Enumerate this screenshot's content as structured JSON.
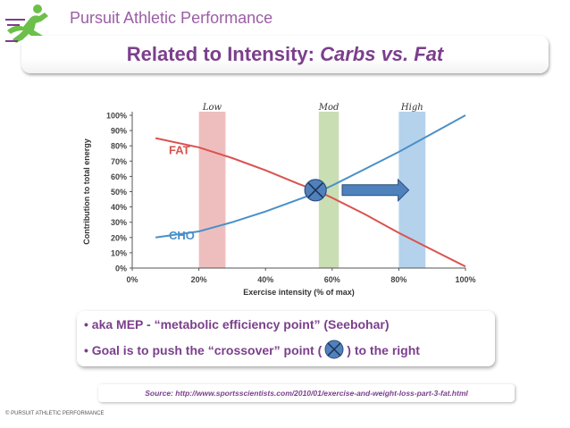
{
  "header": {
    "brand": "Pursuit Athletic Performance",
    "logo_icon": "running-man-icon"
  },
  "slide": {
    "title_main": "Related to Intensity: ",
    "title_emphasis": "Carbs vs. Fat"
  },
  "chart_data": {
    "type": "line",
    "title": "",
    "xlabel": "Exercise intensity (% of max)",
    "ylabel": "Contribution to total energy",
    "x_ticks": [
      "0%",
      "20%",
      "40%",
      "60%",
      "80%",
      "100%"
    ],
    "y_ticks": [
      "0%",
      "10%",
      "20%",
      "30%",
      "40%",
      "50%",
      "60%",
      "70%",
      "80%",
      "90%",
      "100%"
    ],
    "xlim": [
      0,
      100
    ],
    "ylim": [
      0,
      100
    ],
    "series": [
      {
        "name": "FAT",
        "color": "#d9534f",
        "x": [
          7,
          20,
          30,
          40,
          50,
          55,
          60,
          70,
          80,
          90,
          100
        ],
        "y": [
          85,
          79,
          72,
          64,
          55,
          51,
          46,
          35,
          23,
          12,
          1
        ]
      },
      {
        "name": "CHO",
        "color": "#4a90c8",
        "x": [
          7,
          20,
          30,
          40,
          50,
          55,
          60,
          70,
          80,
          90,
          100
        ],
        "y": [
          20,
          24,
          30,
          37,
          45,
          49,
          54,
          65,
          76,
          88,
          100
        ]
      }
    ],
    "bands": [
      {
        "label": "Low",
        "from": 20,
        "to": 28,
        "color": "#e8a8a8"
      },
      {
        "label": "Mod",
        "from": 56,
        "to": 62,
        "color": "#b7d39a"
      },
      {
        "label": "High",
        "from": 80,
        "to": 88,
        "color": "#9cc3e6"
      }
    ],
    "crossover": {
      "x": 55,
      "y": 51
    },
    "arrow": {
      "from_x": 63,
      "to_x": 83,
      "y": 51
    }
  },
  "bullets": [
    {
      "text": "aka MEP - “metabolic efficiency point” (Seebohar)"
    },
    {
      "before": "Goal is to push the “crossover” point (",
      "after": ") to the right"
    }
  ],
  "bullet_marker": "•",
  "source": "Source: http://www.sportsscientists.com/2010/01/exercise-and-weight-loss-part-3-fat.html",
  "footer": {
    "copyright": "© PURSUIT ATHLETIC PERFORMANCE"
  }
}
